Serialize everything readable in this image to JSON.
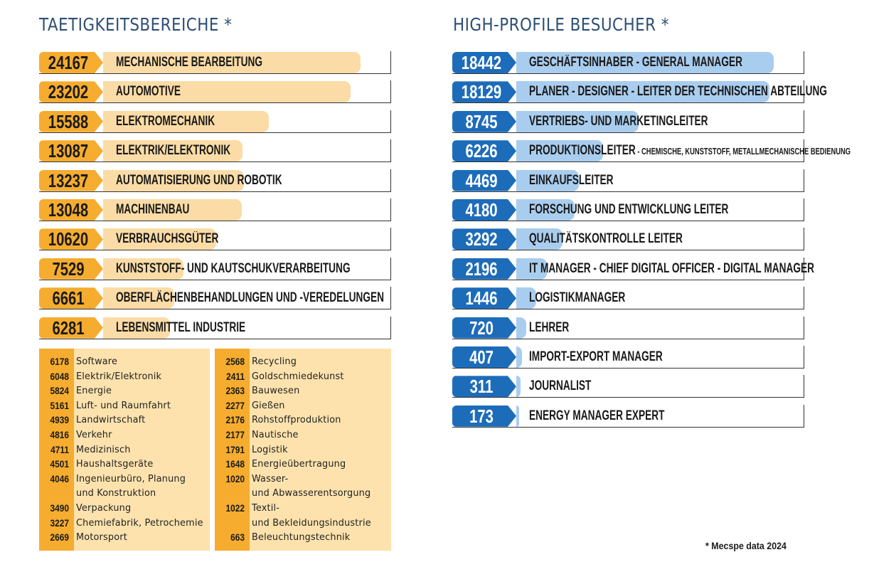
{
  "left_title": "TAETIGKEITSBEREICHE *",
  "right_title": "HIGH-PROFILE BESUCHER *",
  "footnote": "* Mecspe data 2024",
  "colors": {
    "orange": "#f5ac2f",
    "orange_light": "#fbdca6",
    "blue": "#1d6cba",
    "blue_light": "#a9cdee",
    "title": "#2d4f73"
  },
  "chart_data": [
    {
      "type": "bar",
      "title": "TAETIGKEITSBEREICHE *",
      "categories": [
        "MECHANISCHE BEARBEITUNG",
        "AUTOMOTIVE",
        "ELEKTROMECHANIK",
        "ELEKTRIK/ELEKTRONIK",
        "AUTOMATISIERUNG UND ROBOTIK",
        "MACHINENBAU",
        "VERBRAUCHSGÜTER",
        "KUNSTSTOFF- UND KAUTSCHUKVERARBEITUNG",
        "OBERFLÄCHENBEHANDLUNGEN UND -VEREDELUNGEN",
        "LEBENSMITTEL INDUSTRIE"
      ],
      "values": [
        24167,
        23202,
        15588,
        13087,
        13237,
        13048,
        10620,
        7529,
        6661,
        6281
      ],
      "orientation": "horizontal",
      "grid": false
    },
    {
      "type": "bar",
      "title": "HIGH-PROFILE BESUCHER *",
      "categories": [
        "GESCHÄFTSINHABER - GENERAL MANAGER",
        "PLANER - DESIGNER - LEITER DER TECHNISCHEN ABTEILUNG",
        "VERTRIEBS- UND MARKETINGLEITER",
        "PRODUKTIONSLEITER",
        "EINKAUFSLEITER",
        "FORSCHUNG UND ENTWICKLUNG LEITER",
        "QUALITÄTSKONTROLLE LEITER",
        "IT MANAGER - CHIEF DIGITAL OFFICER - DIGITAL MANAGER",
        "LOGISTIKMANAGER",
        "LEHRER",
        "IMPORT-EXPORT MANAGER",
        "JOURNALIST",
        "ENERGY MANAGER EXPERT"
      ],
      "category_suffixes": {
        "PRODUKTIONSLEITER": "- CHEMISCHE, KUNSTSTOFF, METALLMECHANISCHE BEDIENUNG"
      },
      "values": [
        18442,
        18129,
        8745,
        6226,
        4469,
        4180,
        3292,
        2196,
        1446,
        720,
        407,
        311,
        173
      ],
      "orientation": "horizontal",
      "grid": false
    },
    {
      "type": "table",
      "columns": [
        [
          {
            "value": "6178",
            "label": "Software"
          },
          {
            "value": "6048",
            "label": "Elektrik/Elektronik"
          },
          {
            "value": "5824",
            "label": "Energie"
          },
          {
            "value": "5161",
            "label": "Luft- und Raumfahrt"
          },
          {
            "value": "4939",
            "label": "Landwirtschaft"
          },
          {
            "value": "4816",
            "label": "Verkehr"
          },
          {
            "value": "4711",
            "label": "Medizinisch"
          },
          {
            "value": "4501",
            "label": "Haushaltsgeräte"
          },
          {
            "value": "4046",
            "label": "Ingenieurbüro, Planung\nund Konstruktion"
          },
          {
            "value": "3490",
            "label": "Verpackung"
          },
          {
            "value": "3227",
            "label": "Chemiefabrik, Petrochemie"
          },
          {
            "value": "2669",
            "label": "Motorsport"
          }
        ],
        [
          {
            "value": "2568",
            "label": "Recycling"
          },
          {
            "value": "2411",
            "label": "Goldschmiedekunst"
          },
          {
            "value": "2363",
            "label": "Bauwesen"
          },
          {
            "value": "2277",
            "label": "Gießen"
          },
          {
            "value": "2176",
            "label": "Rohstoffproduktion"
          },
          {
            "value": "2177",
            "label": "Nautische"
          },
          {
            "value": "1791",
            "label": "Logistik"
          },
          {
            "value": "1648",
            "label": "Energieübertragung"
          },
          {
            "value": "1020",
            "label": "Wasser-\nund Abwasserentsorgung"
          },
          {
            "value": "1022",
            "label": "Textil-\nund Bekleidungsindustrie"
          },
          {
            "value": "663",
            "label": "Beleuchtungstechnik"
          }
        ]
      ]
    }
  ]
}
